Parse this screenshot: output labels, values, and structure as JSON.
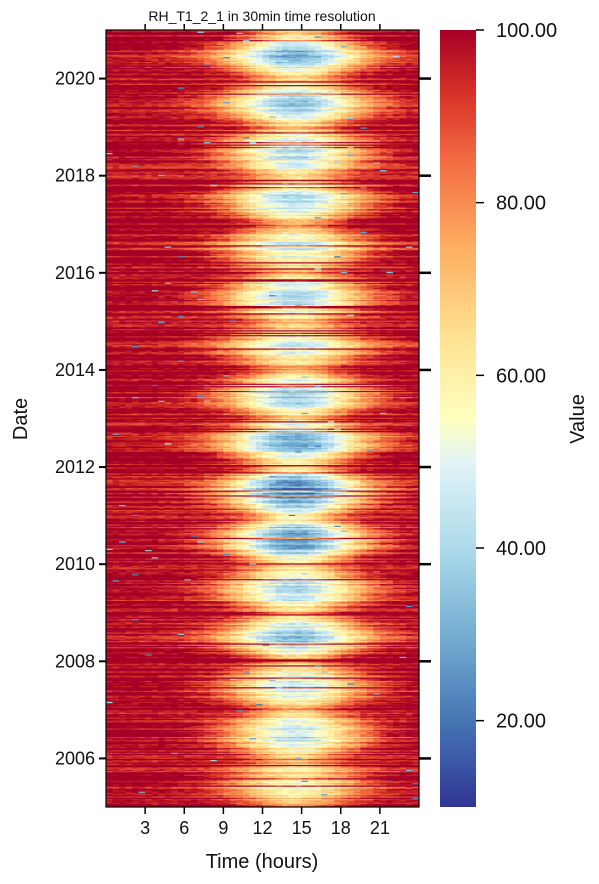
{
  "chart_data": {
    "type": "heatmap",
    "title": "RH_T1_2_1 in 30min time resolution",
    "xlabel": "Time (hours)",
    "ylabel": "Date",
    "x_range": [
      0,
      24
    ],
    "x_ticks": [
      3,
      6,
      9,
      12,
      15,
      18,
      21
    ],
    "x_tick_labels": [
      "3",
      "6",
      "9",
      "12",
      "15",
      "18",
      "21"
    ],
    "y_range": [
      2005.0,
      2021.0
    ],
    "y_ticks": [
      2006,
      2008,
      2010,
      2012,
      2014,
      2016,
      2018,
      2020
    ],
    "y_tick_labels": [
      "2006",
      "2008",
      "2010",
      "2012",
      "2014",
      "2016",
      "2018",
      "2020"
    ],
    "colorbar": {
      "label": "Value",
      "range": [
        10,
        100
      ],
      "ticks": [
        20,
        40,
        60,
        80,
        100
      ],
      "tick_labels": [
        "20.00",
        "40.00",
        "60.00",
        "80.00",
        "100.00"
      ],
      "colormap": "RdYlBu_r"
    },
    "seasonal_minima": [
      {
        "year": 2005,
        "min_value": 55
      },
      {
        "year": 2006,
        "min_value": 42
      },
      {
        "year": 2007,
        "min_value": 45
      },
      {
        "year": 2008,
        "min_value": 38
      },
      {
        "year": 2009,
        "min_value": 40
      },
      {
        "year": 2010,
        "min_value": 25
      },
      {
        "year": 2011,
        "min_value": 22
      },
      {
        "year": 2012,
        "min_value": 32
      },
      {
        "year": 2013,
        "min_value": 38
      },
      {
        "year": 2014,
        "min_value": 50
      },
      {
        "year": 2015,
        "min_value": 40
      },
      {
        "year": 2016,
        "min_value": 48
      },
      {
        "year": 2017,
        "min_value": 42
      },
      {
        "year": 2018,
        "min_value": 40
      },
      {
        "year": 2019,
        "min_value": 38
      },
      {
        "year": 2020,
        "min_value": 35
      }
    ],
    "grid": false
  }
}
